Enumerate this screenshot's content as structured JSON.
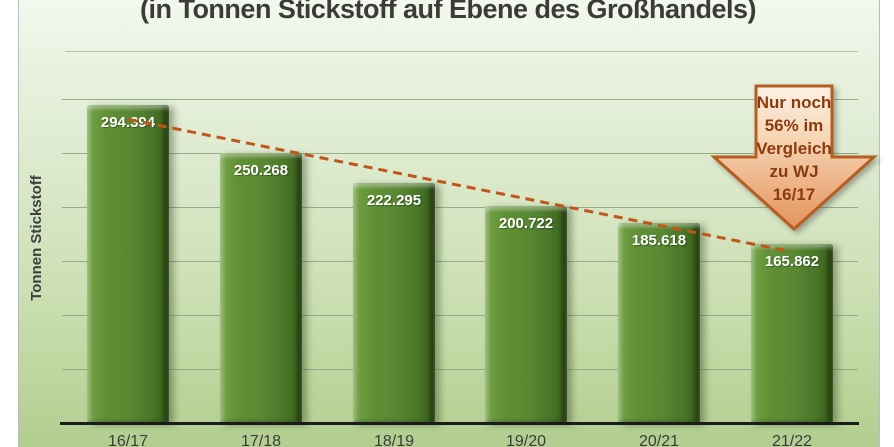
{
  "header": {
    "title": "(in Tonnen Stickstoff auf Ebene des Großhandels)"
  },
  "chart_data": {
    "type": "bar",
    "title": "(in Tonnen Stickstoff auf Ebene des Großhandels)",
    "xlabel": "",
    "ylabel": "Tonnen Stickstoff",
    "categories": [
      "16/17",
      "17/18",
      "18/19",
      "19/20",
      "20/21",
      "21/22"
    ],
    "values": [
      294394,
      250268,
      222295,
      200722,
      185618,
      165862
    ],
    "value_labels": [
      "294.394",
      "250.268",
      "222.295",
      "200.722",
      "185.618",
      "165.862"
    ],
    "ylim": [
      0,
      300000
    ],
    "gridline_step": 50000,
    "grid": true,
    "legend": "none",
    "trendline": {
      "style": "dashed",
      "color": "#c0561a"
    },
    "annotation": {
      "shape": "down-arrow",
      "text": "Nur noch 56% im Vergleich zu WJ 16/17",
      "lines": [
        "Nur noch",
        "56% im",
        "Vergleich",
        "zu WJ",
        "16/17"
      ]
    }
  },
  "colors": {
    "panel_bg_top": "#f5f9f0",
    "panel_bg_bottom": "#b0cc8d",
    "bar_green": "#578732",
    "bar_green_dark": "#355c17",
    "bar_green_light": "#74a349",
    "gridline": "#96ab88",
    "axis_line": "#1b1b1b",
    "title_text": "#3b3b38",
    "bar_value_text": "#ffffff",
    "trendline_orange": "#c0561a",
    "arrow_border": "#b65e20",
    "arrow_fill_top": "#fcf0e4",
    "arrow_fill_bottom": "#e2935c",
    "arrow_text": "#8a3c10"
  }
}
